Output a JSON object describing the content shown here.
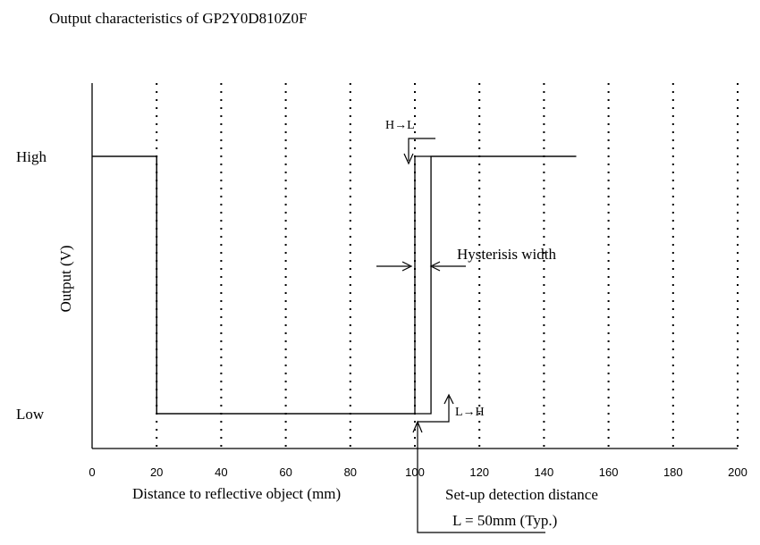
{
  "chart_data": {
    "type": "line",
    "title": "Output characteristics of GP2Y0D810Z0F",
    "xlabel": "Distance to reflective object (mm)",
    "ylabel": "Output (V)",
    "xlim": [
      0,
      200
    ],
    "x_ticks": [
      0,
      20,
      40,
      60,
      80,
      100,
      120,
      140,
      160,
      180,
      200
    ],
    "y_levels": [
      {
        "label": "High",
        "value": 1
      },
      {
        "label": "Low",
        "value": 0
      }
    ],
    "grid": "vertical-dotted",
    "series": [
      {
        "name": "H→L",
        "x": [
          0,
          20,
          20,
          100,
          100,
          150
        ],
        "y": [
          1,
          1,
          0,
          0,
          1,
          1
        ]
      },
      {
        "name": "L→H",
        "x": [
          0,
          20,
          20,
          105,
          105,
          150
        ],
        "y": [
          1,
          1,
          0,
          0,
          1,
          1
        ]
      }
    ],
    "annotations": {
      "h_to_l": "H→L",
      "l_to_h": "L→H",
      "hysteresis": "Hysterisis width",
      "setup_line1": "Set-up detection distance",
      "setup_line2": "L = 50mm (Typ.)"
    }
  }
}
